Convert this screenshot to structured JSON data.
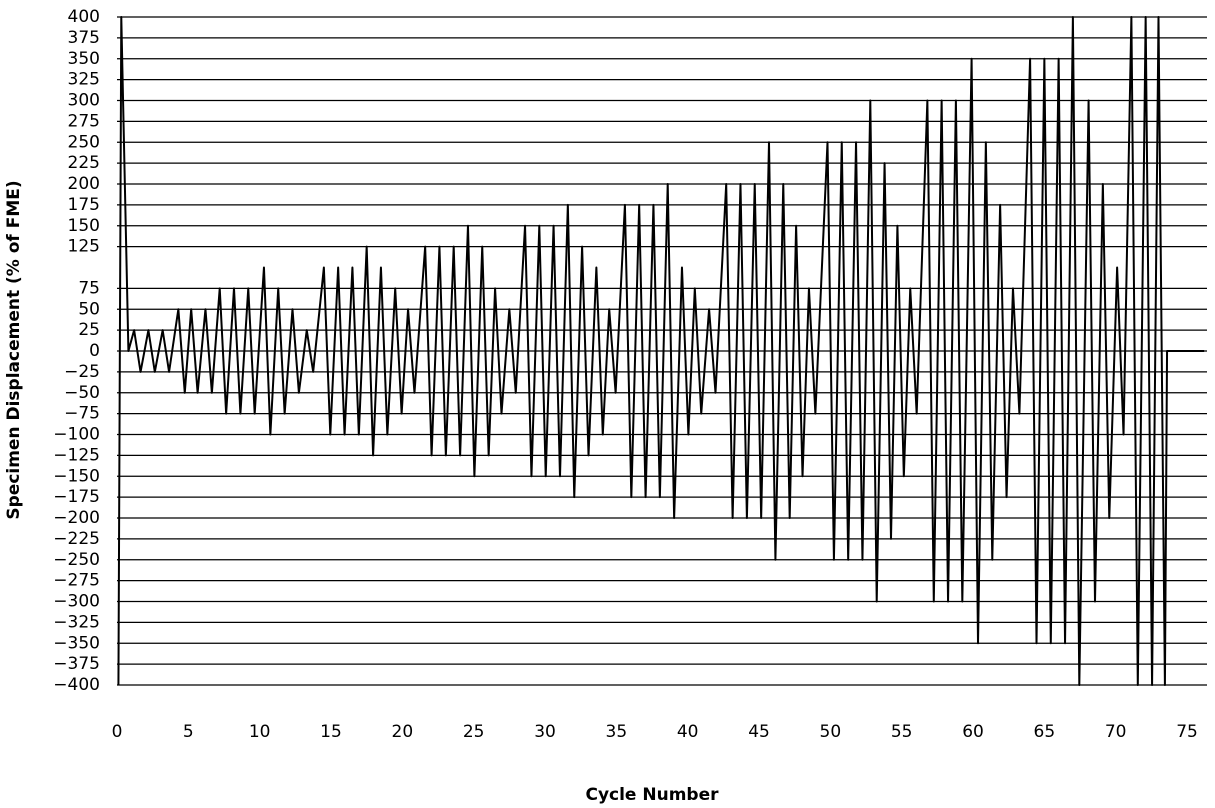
{
  "chart_data": {
    "type": "line",
    "x_label": "Cycle Number",
    "y_label": "Specimen Displacement (% of FME)",
    "color": "#000000",
    "grid": true,
    "xlim": [
      0,
      76.4
    ],
    "ylim": [
      -400,
      400
    ],
    "xticks": [
      0,
      5,
      10,
      15,
      20,
      25,
      30,
      35,
      40,
      45,
      50,
      55,
      60,
      65,
      70,
      75
    ],
    "yticks": [
      400,
      375,
      350,
      325,
      300,
      275,
      250,
      225,
      200,
      175,
      150,
      125,
      75,
      50,
      25,
      0,
      {
        "value": -25,
        "label": "−25"
      },
      {
        "value": -50,
        "label": "−50"
      },
      {
        "value": -75,
        "label": "−75"
      },
      {
        "value": -100,
        "label": "−100"
      },
      {
        "value": -125,
        "label": "−125"
      },
      {
        "value": -150,
        "label": "−150"
      },
      {
        "value": -175,
        "label": "−175"
      },
      {
        "value": -200,
        "label": "−200"
      },
      {
        "value": -225,
        "label": "−225"
      },
      {
        "value": -250,
        "label": "−250"
      },
      {
        "value": -275,
        "label": "−275"
      },
      {
        "value": -300,
        "label": "−300"
      },
      {
        "value": -325,
        "label": "−325"
      },
      {
        "value": -350,
        "label": "−350"
      },
      {
        "value": -375,
        "label": "−375"
      },
      {
        "value": -400,
        "label": "−400"
      }
    ],
    "x": [
      0.1,
      0.3,
      0.8,
      1.2,
      1.65,
      2.2,
      2.65,
      3.2,
      3.65,
      4.3,
      4.75,
      5.2,
      5.65,
      6.2,
      6.65,
      7.2,
      7.65,
      8.2,
      8.65,
      9.2,
      9.65,
      10.3,
      10.75,
      11.3,
      11.75,
      12.3,
      12.75,
      13.3,
      13.75,
      14.5,
      14.95,
      15.5,
      15.95,
      16.5,
      16.95,
      17.5,
      17.95,
      18.5,
      18.95,
      19.5,
      19.95,
      20.4,
      20.85,
      21.6,
      22.05,
      22.6,
      23.05,
      23.6,
      24.05,
      24.6,
      25.05,
      25.6,
      26.05,
      26.5,
      26.95,
      27.5,
      27.95,
      28.6,
      29.05,
      29.6,
      30.05,
      30.6,
      31.05,
      31.6,
      32.05,
      32.6,
      33.05,
      33.6,
      34.05,
      34.5,
      34.95,
      35.6,
      36.05,
      36.6,
      37.05,
      37.6,
      38.05,
      38.6,
      39.05,
      39.6,
      40.05,
      40.5,
      40.95,
      41.5,
      41.95,
      42.7,
      43.15,
      43.7,
      44.15,
      44.7,
      45.15,
      45.7,
      46.15,
      46.7,
      47.15,
      47.6,
      48.05,
      48.5,
      48.95,
      49.8,
      50.25,
      50.8,
      51.25,
      51.8,
      52.25,
      52.8,
      53.25,
      53.8,
      54.25,
      54.7,
      55.15,
      55.6,
      56.05,
      56.8,
      57.25,
      57.8,
      58.25,
      58.8,
      59.25,
      59.9,
      60.35,
      60.9,
      61.35,
      61.9,
      62.35,
      62.8,
      63.25,
      64.0,
      64.45,
      65.0,
      65.45,
      66.0,
      66.45,
      67.0,
      67.45,
      68.1,
      68.55,
      69.1,
      69.55,
      70.1,
      70.55,
      71.1,
      71.55,
      72.1,
      72.55,
      73.0,
      73.45,
      73.6,
      76.2
    ],
    "values": [
      -400,
      400,
      0,
      25,
      -25,
      25,
      -25,
      25,
      -25,
      50,
      -50,
      50,
      -50,
      50,
      -50,
      75,
      -75,
      75,
      -75,
      75,
      -75,
      100,
      -100,
      75,
      -75,
      50,
      -50,
      25,
      -25,
      100,
      -100,
      100,
      -100,
      100,
      -100,
      125,
      -125,
      100,
      -100,
      75,
      -75,
      50,
      -50,
      125,
      -125,
      125,
      -125,
      125,
      -125,
      150,
      -150,
      125,
      -125,
      75,
      -75,
      50,
      -50,
      150,
      -150,
      150,
      -150,
      150,
      -150,
      175,
      -175,
      125,
      -125,
      100,
      -100,
      50,
      -50,
      175,
      -175,
      175,
      -175,
      175,
      -175,
      200,
      -200,
      100,
      -100,
      75,
      -75,
      50,
      -50,
      200,
      -200,
      200,
      -200,
      200,
      -200,
      250,
      -250,
      200,
      -200,
      150,
      -150,
      75,
      -75,
      250,
      -250,
      250,
      -250,
      250,
      -250,
      300,
      -300,
      225,
      -225,
      150,
      -150,
      75,
      -75,
      300,
      -300,
      300,
      -300,
      300,
      -300,
      350,
      -350,
      250,
      -250,
      175,
      -175,
      75,
      -75,
      350,
      -350,
      350,
      -350,
      350,
      -350,
      400,
      -400,
      300,
      -300,
      200,
      -200,
      100,
      -100,
      400,
      -400,
      400,
      -400,
      400,
      -400,
      0,
      0
    ]
  }
}
